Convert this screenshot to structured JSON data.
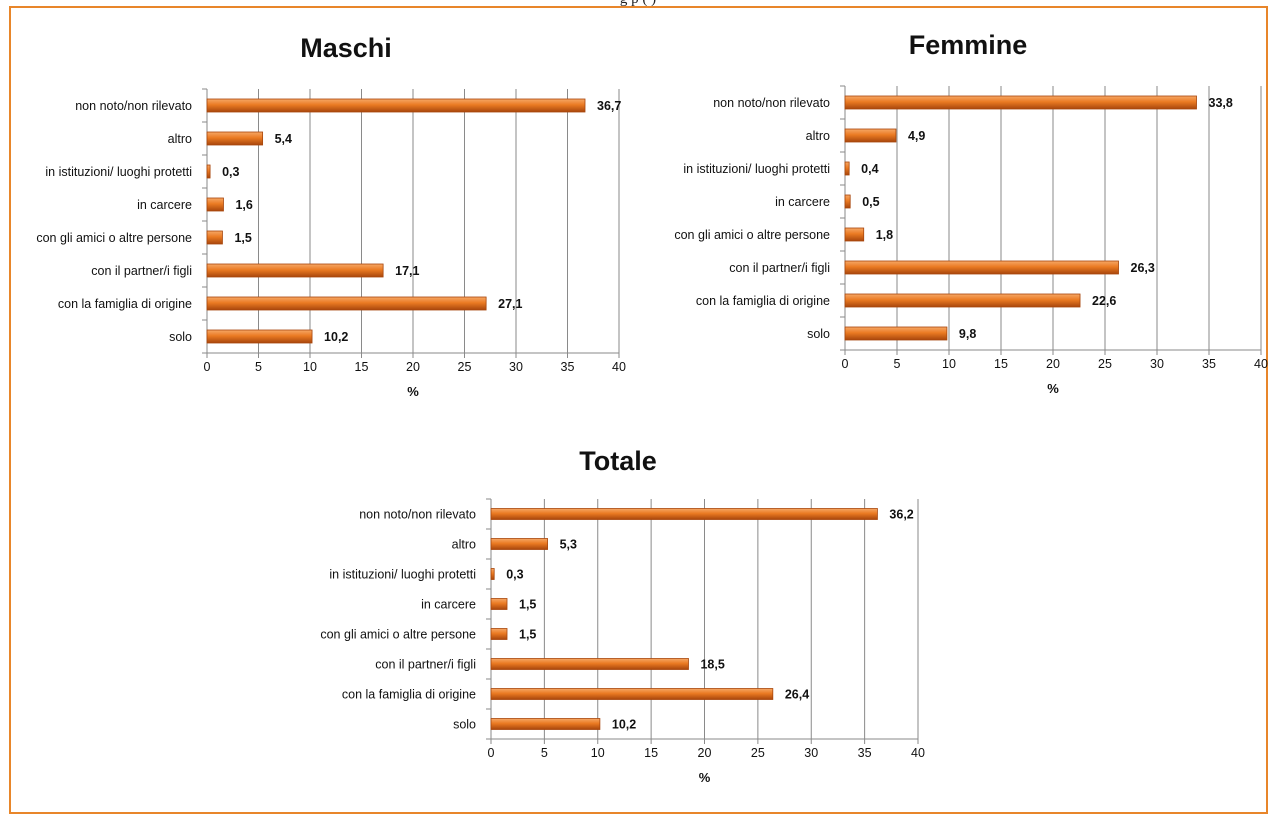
{
  "header_fragment": "g                                                  p                                            (           )",
  "colors": {
    "frame": "#e8862a",
    "bar_fill": "#ea7a22",
    "bar_dark": "#a8460c",
    "grid": "#8a8a8a"
  },
  "chart_data": [
    {
      "type": "bar",
      "orientation": "horizontal",
      "title": "Maschi",
      "categories": [
        "non noto/non rilevato",
        "altro",
        "in istituzioni/ luoghi protetti",
        "in carcere",
        "con gli amici o altre persone",
        "con il partner/i figli",
        "con la famiglia di origine",
        "solo"
      ],
      "values": [
        36.7,
        5.4,
        0.3,
        1.6,
        1.5,
        17.1,
        27.1,
        10.2
      ],
      "value_labels": [
        "36,7",
        "5,4",
        "0,3",
        "1,6",
        "1,5",
        "17,1",
        "27,1",
        "10,2"
      ],
      "xlabel": "%",
      "ylabel": "",
      "xlim": [
        0,
        40
      ],
      "xticks": [
        0,
        5,
        10,
        15,
        20,
        25,
        30,
        35,
        40
      ],
      "grid": "vertical"
    },
    {
      "type": "bar",
      "orientation": "horizontal",
      "title": "Femmine",
      "categories": [
        "non noto/non rilevato",
        "altro",
        "in istituzioni/ luoghi protetti",
        "in carcere",
        "con gli amici o altre persone",
        "con il partner/i figli",
        "con la famiglia di origine",
        "solo"
      ],
      "values": [
        33.8,
        4.9,
        0.4,
        0.5,
        1.8,
        26.3,
        22.6,
        9.8
      ],
      "value_labels": [
        "33,8",
        "4,9",
        "0,4",
        "0,5",
        "1,8",
        "26,3",
        "22,6",
        "9,8"
      ],
      "xlabel": "%",
      "ylabel": "",
      "xlim": [
        0,
        40
      ],
      "xticks": [
        0,
        5,
        10,
        15,
        20,
        25,
        30,
        35,
        40
      ],
      "grid": "vertical"
    },
    {
      "type": "bar",
      "orientation": "horizontal",
      "title": "Totale",
      "categories": [
        "non noto/non rilevato",
        "altro",
        "in istituzioni/ luoghi protetti",
        "in carcere",
        "con gli amici o altre persone",
        "con il partner/i figli",
        "con la famiglia di origine",
        "solo"
      ],
      "values": [
        36.2,
        5.3,
        0.3,
        1.5,
        1.5,
        18.5,
        26.4,
        10.2
      ],
      "value_labels": [
        "36,2",
        "5,3",
        "0,3",
        "1,5",
        "1,5",
        "18,5",
        "26,4",
        "10,2"
      ],
      "xlabel": "%",
      "ylabel": "",
      "xlim": [
        0,
        40
      ],
      "xticks": [
        0,
        5,
        10,
        15,
        20,
        25,
        30,
        35,
        40
      ],
      "grid": "vertical"
    }
  ]
}
